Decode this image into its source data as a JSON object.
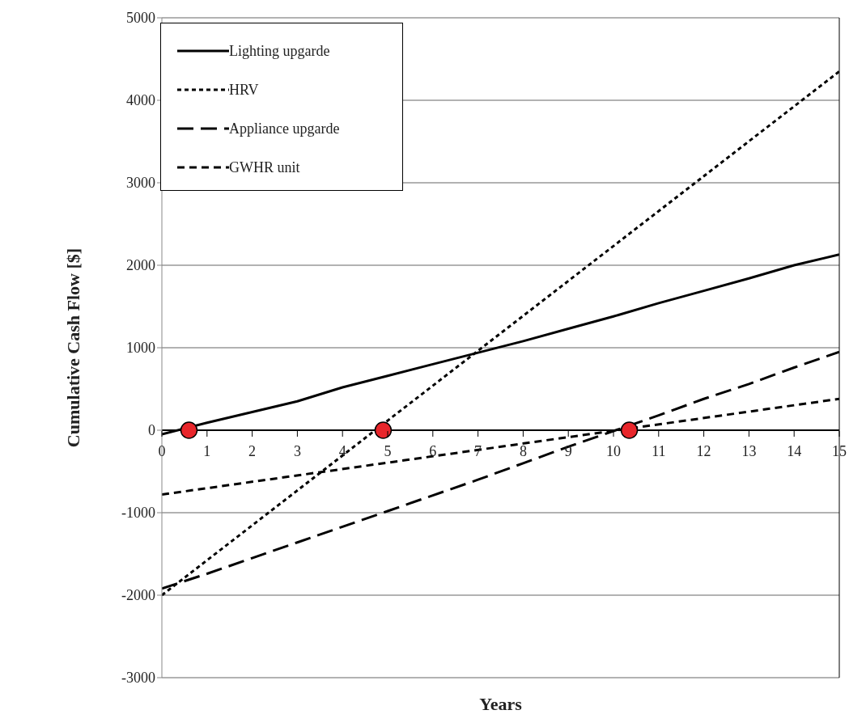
{
  "chart_data": {
    "type": "line",
    "xlabel": "Years",
    "ylabel": "Cumulative Cash Flow [$]",
    "xlim": [
      0,
      15
    ],
    "xticks": [
      0,
      1,
      2,
      3,
      4,
      5,
      6,
      7,
      8,
      9,
      10,
      11,
      12,
      13,
      14,
      15
    ],
    "ylim": [
      -3000,
      5000
    ],
    "yticks": [
      -3000,
      -2000,
      -1000,
      0,
      1000,
      2000,
      3000,
      4000,
      5000
    ],
    "grid": "y",
    "legend": "top left",
    "marker": "none",
    "series": [
      {
        "name": "Lighting upgarde",
        "color": "#000000",
        "line_style": "solid",
        "x": [
          0,
          1,
          2,
          3,
          4,
          5,
          6,
          7,
          8,
          9,
          10,
          11,
          12,
          13,
          14,
          15
        ],
        "values": [
          -50,
          90,
          220,
          350,
          520,
          660,
          800,
          940,
          1080,
          1230,
          1380,
          1540,
          1690,
          1840,
          2000,
          2130
        ]
      },
      {
        "name": "HRV",
        "color": "#000000",
        "line_style": "dotted",
        "x": [
          0,
          15
        ],
        "values": [
          -2000,
          4350
        ]
      },
      {
        "name": "Appliance upgarde",
        "color": "#000000",
        "line_style": "dashed",
        "x": [
          0,
          1,
          2,
          3,
          4,
          5,
          6,
          7,
          8,
          9,
          10,
          11,
          12,
          13,
          14,
          15
        ],
        "values": [
          -1920,
          -1740,
          -1550,
          -1360,
          -1170,
          -980,
          -790,
          -600,
          -400,
          -200,
          -10,
          180,
          380,
          560,
          760,
          950
        ]
      },
      {
        "name": "GWHR unit",
        "color": "#000000",
        "line_style": "dashed",
        "x": [
          0,
          15
        ],
        "values": [
          -780,
          380
        ]
      },
      {
        "type": "scatter",
        "color": "#e8262b",
        "marker": "circle",
        "x": [
          0.6,
          4.9,
          10.35
        ],
        "values": [
          0,
          0,
          0
        ]
      }
    ]
  }
}
